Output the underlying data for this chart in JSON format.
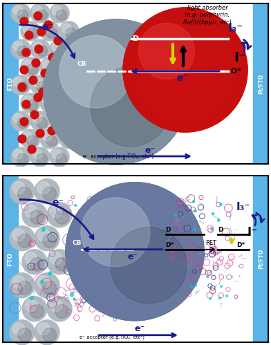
{
  "background_color": "#ffffff",
  "fto_color": "#5ab4e8",
  "arrow_color": "#1a1a8c",
  "blue_line_color": "#1a1a8c",
  "yellow_arrow_color": "#d4d400",
  "red_dot_color": "#cc1111",
  "title_top": "light absorber\n(e.g. porphyrin,\nRu(II)(bpy)₃, etc)",
  "label_fto": "FTO",
  "label_pt_fto": "Pt/FTO",
  "label_cb": "CB",
  "label_d_star": "D*",
  "label_d": "D",
  "label_e_acceptor": "e⁻ acceptor (e.g.TiO₂, etc¹)",
  "label_ret": "RET"
}
